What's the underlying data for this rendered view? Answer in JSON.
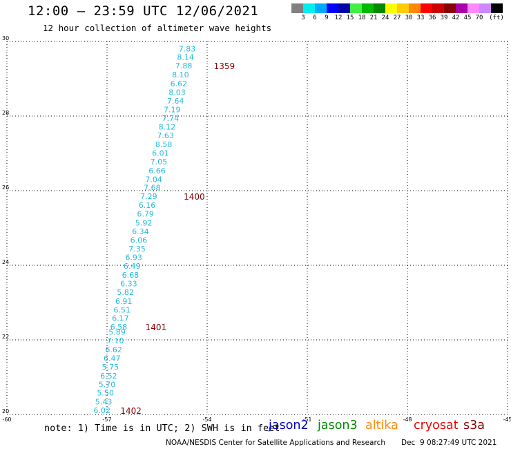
{
  "header": {
    "title": "12:00 – 23:59 UTC 12/06/2021",
    "subtitle": "12 hour collection of altimeter wave heights"
  },
  "legend": {
    "colors": [
      "#808080",
      "#00eeee",
      "#00aaff",
      "#0000ff",
      "#0000aa",
      "#44ee44",
      "#00bb00",
      "#008800",
      "#ffff00",
      "#ffcc00",
      "#ff8800",
      "#ff0000",
      "#cc0000",
      "#880000",
      "#aa00aa",
      "#ff88ff",
      "#cc88ff",
      "#000000"
    ],
    "labels": [
      "3",
      "6",
      "9",
      "12",
      "15",
      "18",
      "21",
      "24",
      "27",
      "30",
      "33",
      "36",
      "39",
      "42",
      "45",
      "70",
      "(ft)"
    ]
  },
  "chart_data": {
    "type": "scatter",
    "xlim": [
      -60,
      -45
    ],
    "ylim": [
      20,
      30
    ],
    "x_ticks": [
      "-60",
      "-57",
      "-54",
      "-51",
      "-48",
      "-45"
    ],
    "y_ticks": [
      "20",
      "22",
      "24",
      "26",
      "28",
      "30"
    ],
    "grid": true,
    "swh_color": "#22bbdd",
    "time_color": "#880000",
    "points": [
      {
        "x": -54.6,
        "y": 29.81,
        "v": "7.83"
      },
      {
        "x": -54.65,
        "y": 29.58,
        "v": "8.14"
      },
      {
        "x": -54.7,
        "y": 29.35,
        "v": "7.88"
      },
      {
        "x": -54.8,
        "y": 29.11,
        "v": "8.10"
      },
      {
        "x": -54.85,
        "y": 28.87,
        "v": "6.62"
      },
      {
        "x": -54.9,
        "y": 28.64,
        "v": "8.03"
      },
      {
        "x": -54.95,
        "y": 28.41,
        "v": "7.64"
      },
      {
        "x": -55.05,
        "y": 28.18,
        "v": "7.19"
      },
      {
        "x": -55.1,
        "y": 27.94,
        "v": "7.74"
      },
      {
        "x": -55.2,
        "y": 27.71,
        "v": "8.12"
      },
      {
        "x": -55.25,
        "y": 27.48,
        "v": "7.63"
      },
      {
        "x": -55.3,
        "y": 27.24,
        "v": "8.58"
      },
      {
        "x": -55.4,
        "y": 27.01,
        "v": "6.01"
      },
      {
        "x": -55.45,
        "y": 26.78,
        "v": "7.05"
      },
      {
        "x": -55.5,
        "y": 26.54,
        "v": "6.66"
      },
      {
        "x": -55.6,
        "y": 26.31,
        "v": "7.04"
      },
      {
        "x": -55.65,
        "y": 26.08,
        "v": "7.68"
      },
      {
        "x": -55.75,
        "y": 25.85,
        "v": "7.29"
      },
      {
        "x": -55.8,
        "y": 25.61,
        "v": "6.16"
      },
      {
        "x": -55.85,
        "y": 25.38,
        "v": "6.79"
      },
      {
        "x": -55.9,
        "y": 25.14,
        "v": "5.92"
      },
      {
        "x": -56.0,
        "y": 24.91,
        "v": "6.34"
      },
      {
        "x": -56.05,
        "y": 24.68,
        "v": "6.06"
      },
      {
        "x": -56.1,
        "y": 24.44,
        "v": "7.35"
      },
      {
        "x": -56.2,
        "y": 24.21,
        "v": "6.93"
      },
      {
        "x": -56.25,
        "y": 23.98,
        "v": "6.49"
      },
      {
        "x": -56.3,
        "y": 23.74,
        "v": "6.68"
      },
      {
        "x": -56.35,
        "y": 23.51,
        "v": "6.33"
      },
      {
        "x": -56.45,
        "y": 23.28,
        "v": "5.82"
      },
      {
        "x": -56.5,
        "y": 23.04,
        "v": "6.91"
      },
      {
        "x": -56.55,
        "y": 22.81,
        "v": "6.51"
      },
      {
        "x": -56.6,
        "y": 22.58,
        "v": "6.17"
      },
      {
        "x": -56.65,
        "y": 22.35,
        "v": "6.58"
      },
      {
        "x": -56.7,
        "y": 22.21,
        "v": "5.89"
      },
      {
        "x": -56.75,
        "y": 21.98,
        "v": "7.10"
      },
      {
        "x": -56.8,
        "y": 21.74,
        "v": "6.62"
      },
      {
        "x": -56.85,
        "y": 21.51,
        "v": "6.47"
      },
      {
        "x": -56.9,
        "y": 21.28,
        "v": "5.75"
      },
      {
        "x": -56.95,
        "y": 21.04,
        "v": "6.52"
      },
      {
        "x": -57.0,
        "y": 20.81,
        "v": "5.70"
      },
      {
        "x": -57.05,
        "y": 20.58,
        "v": "5.50"
      },
      {
        "x": -57.1,
        "y": 20.34,
        "v": "5.43"
      },
      {
        "x": -57.15,
        "y": 20.11,
        "v": "6.02"
      }
    ],
    "time_labels": [
      {
        "x": -53.8,
        "y": 29.35,
        "v": "1359"
      },
      {
        "x": -54.7,
        "y": 25.85,
        "v": "1400"
      },
      {
        "x": -55.85,
        "y": 22.35,
        "v": "1401"
      },
      {
        "x": -56.6,
        "y": 20.11,
        "v": "1402"
      }
    ]
  },
  "footer": {
    "note": "note: 1) Time is in UTC; 2) SWH is in feet",
    "satellites": [
      {
        "name": "jason2",
        "color": "#0000cc"
      },
      {
        "name": "jason3",
        "color": "#008800"
      },
      {
        "name": "altika",
        "color": "#ff8800"
      },
      {
        "name": "cryosat",
        "color": "#ee0000"
      },
      {
        "name": "s3a",
        "color": "#880000"
      }
    ],
    "credit": "NOAA/NESDIS Center for Satellite Applications and Research",
    "timestamp": "Dec  9 08:27:49 UTC 2021"
  }
}
